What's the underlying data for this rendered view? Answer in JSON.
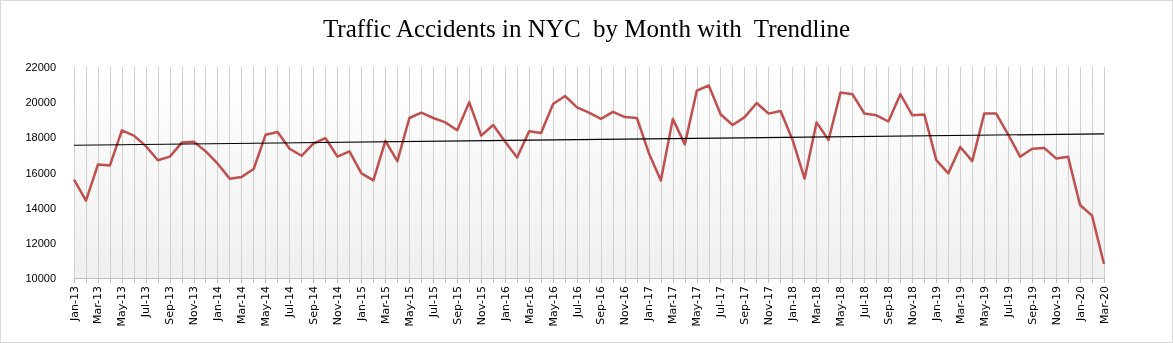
{
  "chart_data": {
    "type": "line",
    "title": "Traffic Accidents in NYC  by Month with  Trendline",
    "categories": [
      "Jan-13",
      null,
      "Mar-13",
      null,
      "May-13",
      null,
      "Jul-13",
      null,
      "Sep-13",
      null,
      "Nov-13",
      null,
      "Jan-14",
      null,
      "Mar-14",
      null,
      "May-14",
      null,
      "Jul-14",
      null,
      "Sep-14",
      null,
      "Nov-14",
      null,
      "Jan-15",
      null,
      "Mar-15",
      null,
      "May-15",
      null,
      "Jul-15",
      null,
      "Sep-15",
      null,
      "Nov-15",
      null,
      "Jan-16",
      null,
      "Mar-16",
      null,
      "May-16",
      null,
      "Jul-16",
      null,
      "Sep-16",
      null,
      "Nov-16",
      null,
      "Jan-17",
      null,
      "Mar-17",
      null,
      "May-17",
      null,
      "Jul-17",
      null,
      "Sep-17",
      null,
      "Nov-17",
      null,
      "Jan-18",
      null,
      "Mar-18",
      null,
      "May-18",
      null,
      "Jul-18",
      null,
      "Sep-18",
      null,
      "Nov-18",
      null,
      "Jan-19",
      null,
      "Mar-19",
      null,
      "May-19",
      null,
      "Jul-19",
      null,
      "Sep-19",
      null,
      "Nov-19",
      null,
      "Jan-20",
      null,
      "Mar-20"
    ],
    "series": [
      {
        "color": "#c0504d",
        "values": [
          15600,
          14400,
          16450,
          16400,
          18400,
          18100,
          17500,
          16700,
          16900,
          17700,
          17750,
          17200,
          16500,
          15650,
          15750,
          16200,
          18150,
          18300,
          17350,
          16950,
          17650,
          17950,
          16900,
          17200,
          15950,
          15550,
          17800,
          16650,
          19100,
          19400,
          19100,
          18850,
          18400,
          20000,
          18100,
          18700,
          17750,
          16850,
          18350,
          18250,
          19900,
          20350,
          19700,
          19400,
          19050,
          19450,
          19150,
          19100,
          17100,
          15550,
          19050,
          17600,
          20650,
          20950,
          19300,
          18700,
          19150,
          19950,
          19350,
          19500,
          17850,
          15650,
          18850,
          17850,
          20550,
          20450,
          19350,
          19250,
          18900,
          20450,
          19250,
          19300,
          16700,
          15950,
          17450,
          16650,
          19350,
          19350,
          18150,
          16900,
          17350,
          17400,
          16800,
          16900,
          14150,
          13550,
          10800
        ]
      },
      {
        "type": "line",
        "color": "#000000",
        "x": [
          "Jan-13",
          "Mar-20"
        ],
        "values": [
          17550,
          18200
        ]
      }
    ],
    "ylim": [
      10000,
      22000
    ],
    "yticks": [
      10000,
      12000,
      14000,
      16000,
      18000,
      20000,
      22000
    ],
    "grid": "x",
    "marker": "none",
    "line_style": "solid"
  }
}
